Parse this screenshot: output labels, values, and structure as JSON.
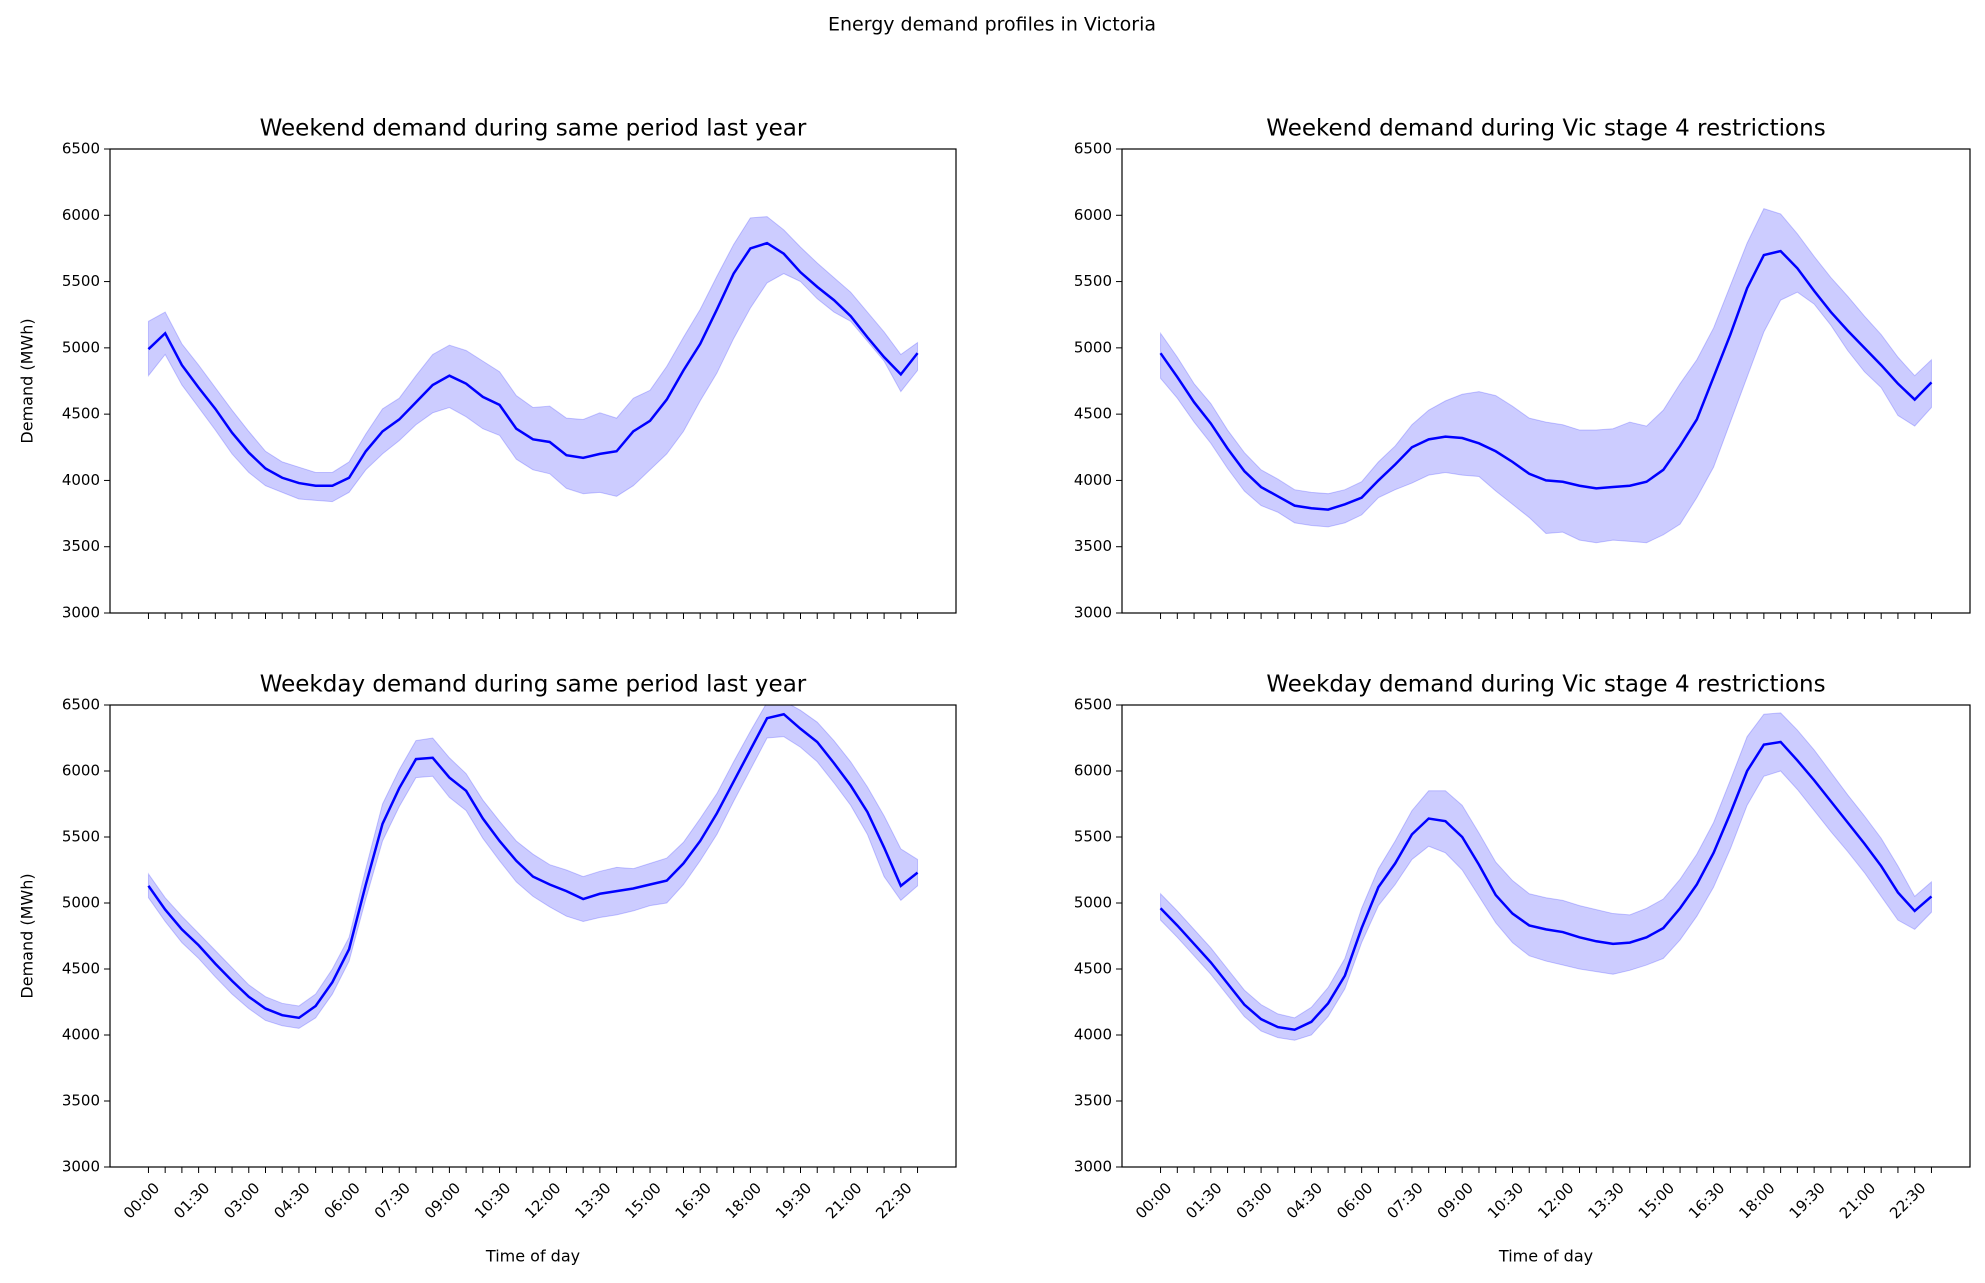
{
  "title": "Energy demand profiles in Victoria",
  "chart_data": [
    {
      "type": "line",
      "title": "Weekend demand during same period last year",
      "ylabel": "Demand (MWh)",
      "ylim": [
        3000,
        6500
      ],
      "yticks": [
        3000,
        3500,
        4000,
        4500,
        5000,
        5500,
        6000,
        6500
      ],
      "color": "#0000ff",
      "band_color": "#0000ff",
      "values": [
        4990,
        5110,
        4870,
        4700,
        4540,
        4360,
        4210,
        4090,
        4020,
        3980,
        3960,
        3960,
        4020,
        4220,
        4370,
        4460,
        4590,
        4720,
        4790,
        4730,
        4630,
        4570,
        4390,
        4310,
        4290,
        4190,
        4170,
        4200,
        4220,
        4370,
        4450,
        4610,
        4830,
        5030,
        5290,
        5560,
        5750,
        5790,
        5710,
        5570,
        5460,
        5360,
        5240,
        5080,
        4930,
        4800,
        4960
      ],
      "upper": [
        5200,
        5270,
        5030,
        4870,
        4700,
        4530,
        4370,
        4220,
        4140,
        4100,
        4060,
        4060,
        4140,
        4350,
        4540,
        4620,
        4790,
        4950,
        5020,
        4980,
        4900,
        4820,
        4640,
        4550,
        4560,
        4470,
        4460,
        4510,
        4470,
        4620,
        4680,
        4860,
        5080,
        5290,
        5540,
        5780,
        5980,
        5990,
        5890,
        5760,
        5640,
        5530,
        5420,
        5270,
        5120,
        4950,
        5040
      ],
      "lower": [
        4790,
        4950,
        4720,
        4550,
        4380,
        4200,
        4060,
        3960,
        3910,
        3860,
        3850,
        3840,
        3910,
        4080,
        4200,
        4300,
        4420,
        4510,
        4550,
        4480,
        4390,
        4340,
        4160,
        4080,
        4050,
        3940,
        3900,
        3910,
        3880,
        3960,
        4080,
        4200,
        4370,
        4600,
        4810,
        5070,
        5300,
        5490,
        5560,
        5500,
        5370,
        5270,
        5200,
        5050,
        4900,
        4670,
        4830
      ]
    },
    {
      "type": "line",
      "title": "Weekend demand during Vic stage 4 restrictions",
      "ylim": [
        3000,
        6500
      ],
      "yticks": [
        3000,
        3500,
        4000,
        4500,
        5000,
        5500,
        6000,
        6500
      ],
      "color": "#0000ff",
      "band_color": "#0000ff",
      "values": [
        4960,
        4780,
        4590,
        4430,
        4240,
        4070,
        3950,
        3880,
        3810,
        3790,
        3780,
        3820,
        3870,
        4000,
        4120,
        4250,
        4310,
        4330,
        4320,
        4280,
        4220,
        4140,
        4050,
        4000,
        3990,
        3960,
        3940,
        3950,
        3960,
        3990,
        4080,
        4260,
        4460,
        4780,
        5100,
        5450,
        5700,
        5730,
        5600,
        5430,
        5270,
        5130,
        5000,
        4870,
        4730,
        4610,
        4740
      ],
      "upper": [
        5110,
        4930,
        4730,
        4580,
        4380,
        4210,
        4080,
        4010,
        3930,
        3910,
        3900,
        3930,
        3990,
        4140,
        4260,
        4420,
        4530,
        4600,
        4650,
        4670,
        4640,
        4560,
        4470,
        4440,
        4420,
        4380,
        4380,
        4390,
        4440,
        4410,
        4530,
        4730,
        4910,
        5150,
        5470,
        5790,
        6050,
        6010,
        5860,
        5690,
        5530,
        5390,
        5240,
        5100,
        4930,
        4790,
        4910
      ],
      "lower": [
        4770,
        4620,
        4440,
        4280,
        4090,
        3920,
        3810,
        3760,
        3680,
        3660,
        3650,
        3680,
        3740,
        3870,
        3930,
        3980,
        4040,
        4060,
        4040,
        4030,
        3920,
        3820,
        3720,
        3600,
        3610,
        3550,
        3530,
        3550,
        3540,
        3530,
        3590,
        3670,
        3870,
        4100,
        4440,
        4780,
        5120,
        5360,
        5420,
        5330,
        5170,
        4980,
        4820,
        4700,
        4490,
        4410,
        4550
      ]
    },
    {
      "type": "line",
      "title": "Weekday demand during same period last year",
      "ylabel": "Demand (MWh)",
      "xlabel": "Time of day",
      "categories": [
        "00:00",
        null,
        null,
        "01:30",
        null,
        null,
        "03:00",
        null,
        null,
        "04:30",
        null,
        null,
        "06:00",
        null,
        null,
        "07:30",
        null,
        null,
        "09:00",
        null,
        null,
        "10:30",
        null,
        null,
        "12:00",
        null,
        null,
        "13:30",
        null,
        null,
        "15:00",
        null,
        null,
        "16:30",
        null,
        null,
        "18:00",
        null,
        null,
        "19:30",
        null,
        null,
        "21:00",
        null,
        null,
        "22:30",
        null
      ],
      "ylim": [
        3000,
        6500
      ],
      "yticks": [
        3000,
        3500,
        4000,
        4500,
        5000,
        5500,
        6000,
        6500
      ],
      "color": "#0000ff",
      "band_color": "#0000ff",
      "values": [
        5130,
        4950,
        4800,
        4680,
        4540,
        4410,
        4290,
        4200,
        4150,
        4130,
        4220,
        4400,
        4650,
        5140,
        5600,
        5870,
        6090,
        6100,
        5950,
        5850,
        5640,
        5470,
        5320,
        5200,
        5140,
        5090,
        5030,
        5070,
        5090,
        5110,
        5140,
        5170,
        5300,
        5470,
        5680,
        5920,
        6160,
        6400,
        6430,
        6320,
        6220,
        6060,
        5890,
        5690,
        5420,
        5130,
        5230
      ],
      "upper": [
        5220,
        5040,
        4900,
        4770,
        4640,
        4510,
        4380,
        4290,
        4240,
        4220,
        4310,
        4500,
        4740,
        5260,
        5750,
        6010,
        6230,
        6250,
        6100,
        5980,
        5780,
        5620,
        5470,
        5370,
        5290,
        5250,
        5200,
        5240,
        5270,
        5260,
        5300,
        5340,
        5460,
        5640,
        5830,
        6070,
        6300,
        6520,
        6530,
        6460,
        6370,
        6230,
        6070,
        5880,
        5660,
        5410,
        5330
      ],
      "lower": [
        5040,
        4860,
        4700,
        4580,
        4440,
        4310,
        4200,
        4110,
        4070,
        4050,
        4130,
        4310,
        4560,
        5030,
        5470,
        5730,
        5950,
        5960,
        5800,
        5700,
        5490,
        5320,
        5160,
        5050,
        4970,
        4900,
        4860,
        4890,
        4910,
        4940,
        4980,
        5000,
        5140,
        5320,
        5520,
        5770,
        6010,
        6250,
        6260,
        6180,
        6070,
        5910,
        5740,
        5520,
        5200,
        5020,
        5130
      ]
    },
    {
      "type": "line",
      "title": "Weekday demand during Vic stage 4 restrictions",
      "xlabel": "Time of day",
      "categories": [
        "00:00",
        null,
        null,
        "01:30",
        null,
        null,
        "03:00",
        null,
        null,
        "04:30",
        null,
        null,
        "06:00",
        null,
        null,
        "07:30",
        null,
        null,
        "09:00",
        null,
        null,
        "10:30",
        null,
        null,
        "12:00",
        null,
        null,
        "13:30",
        null,
        null,
        "15:00",
        null,
        null,
        "16:30",
        null,
        null,
        "18:00",
        null,
        null,
        "19:30",
        null,
        null,
        "21:00",
        null,
        null,
        "22:30",
        null
      ],
      "ylim": [
        3000,
        6500
      ],
      "yticks": [
        3000,
        3500,
        4000,
        4500,
        5000,
        5500,
        6000,
        6500
      ],
      "color": "#0000ff",
      "band_color": "#0000ff",
      "values": [
        4960,
        4830,
        4690,
        4550,
        4390,
        4230,
        4120,
        4060,
        4040,
        4100,
        4240,
        4450,
        4810,
        5120,
        5300,
        5520,
        5640,
        5620,
        5500,
        5290,
        5060,
        4920,
        4830,
        4800,
        4780,
        4740,
        4710,
        4690,
        4700,
        4740,
        4810,
        4960,
        5140,
        5380,
        5680,
        6000,
        6200,
        6220,
        6080,
        5930,
        5770,
        5610,
        5450,
        5280,
        5080,
        4940,
        5050
      ],
      "upper": [
        5070,
        4940,
        4800,
        4660,
        4500,
        4340,
        4230,
        4160,
        4130,
        4210,
        4360,
        4580,
        4960,
        5260,
        5470,
        5700,
        5850,
        5850,
        5740,
        5530,
        5310,
        5170,
        5070,
        5040,
        5020,
        4980,
        4950,
        4920,
        4910,
        4960,
        5030,
        5180,
        5370,
        5610,
        5930,
        6260,
        6430,
        6440,
        6310,
        6160,
        5990,
        5820,
        5660,
        5490,
        5280,
        5050,
        5160
      ],
      "lower": [
        4870,
        4740,
        4600,
        4460,
        4300,
        4140,
        4030,
        3980,
        3960,
        4000,
        4140,
        4350,
        4700,
        4980,
        5140,
        5330,
        5430,
        5380,
        5250,
        5050,
        4850,
        4700,
        4600,
        4560,
        4530,
        4500,
        4480,
        4460,
        4490,
        4530,
        4580,
        4720,
        4900,
        5120,
        5410,
        5740,
        5960,
        6000,
        5860,
        5700,
        5540,
        5390,
        5230,
        5050,
        4870,
        4800,
        4930
      ]
    }
  ]
}
